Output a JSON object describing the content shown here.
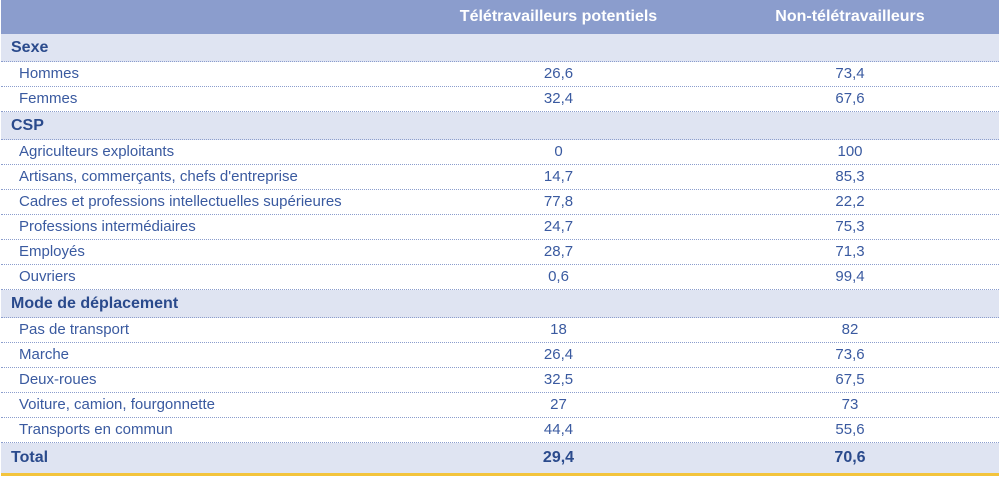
{
  "header": {
    "label": "",
    "col_a": "Télétravailleurs potentiels",
    "col_b": "Non-télétravailleurs"
  },
  "groups": [
    {
      "title": "Sexe",
      "rows": [
        {
          "label": "Hommes",
          "a": "26,6",
          "b": "73,4"
        },
        {
          "label": "Femmes",
          "a": "32,4",
          "b": "67,6"
        }
      ]
    },
    {
      "title": "CSP",
      "rows": [
        {
          "label": "Agriculteurs exploitants",
          "a": "0",
          "b": "100"
        },
        {
          "label": "Artisans, commerçants, chefs d'entreprise",
          "a": "14,7",
          "b": "85,3"
        },
        {
          "label": "Cadres et professions intellectuelles supérieures",
          "a": "77,8",
          "b": "22,2"
        },
        {
          "label": "Professions intermédiaires",
          "a": "24,7",
          "b": "75,3"
        },
        {
          "label": "Employés",
          "a": "28,7",
          "b": "71,3"
        },
        {
          "label": "Ouvriers",
          "a": "0,6",
          "b": "99,4"
        }
      ]
    },
    {
      "title": "Mode de déplacement",
      "rows": [
        {
          "label": "Pas de transport",
          "a": "18",
          "b": "82"
        },
        {
          "label": "Marche",
          "a": "26,4",
          "b": "73,6"
        },
        {
          "label": "Deux-roues",
          "a": "32,5",
          "b": "67,5"
        },
        {
          "label": "Voiture, camion, fourgonnette",
          "a": "27",
          "b": "73"
        },
        {
          "label": "Transports en commun",
          "a": "44,4",
          "b": "55,6"
        }
      ]
    }
  ],
  "total": {
    "label": "Total",
    "a": "29,4",
    "b": "70,6"
  },
  "colors": {
    "header_bg": "#8b9dcd",
    "group_bg": "#dfe4f2",
    "text": "#2a4a8c",
    "accent": "#f3c43c"
  }
}
